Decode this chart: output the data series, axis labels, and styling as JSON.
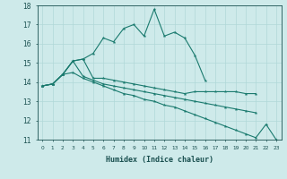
{
  "xlabel": "Humidex (Indice chaleur)",
  "x": [
    0,
    1,
    2,
    3,
    4,
    5,
    6,
    7,
    8,
    9,
    10,
    11,
    12,
    13,
    14,
    15,
    16,
    17,
    18,
    19,
    20,
    21,
    22,
    23
  ],
  "line1": [
    13.8,
    13.9,
    14.4,
    15.1,
    15.2,
    15.5,
    16.3,
    16.1,
    16.8,
    17.0,
    16.4,
    17.8,
    16.4,
    16.6,
    16.3,
    15.4,
    14.1,
    null,
    null,
    null,
    null,
    null,
    null,
    null
  ],
  "line2": [
    13.8,
    13.9,
    14.4,
    15.1,
    15.2,
    14.2,
    14.2,
    14.1,
    14.0,
    13.9,
    13.8,
    13.7,
    13.6,
    13.5,
    13.4,
    13.5,
    13.5,
    13.5,
    13.5,
    13.5,
    13.4,
    13.4,
    null,
    null
  ],
  "line3": [
    13.8,
    13.9,
    14.4,
    15.1,
    14.3,
    14.1,
    13.9,
    13.8,
    13.7,
    13.6,
    13.5,
    13.4,
    13.3,
    13.2,
    13.1,
    13.0,
    12.9,
    12.8,
    12.7,
    12.6,
    12.5,
    12.4,
    null,
    null
  ],
  "line4": [
    13.8,
    13.9,
    14.4,
    14.5,
    14.2,
    14.0,
    13.8,
    13.6,
    13.4,
    13.3,
    13.1,
    13.0,
    12.8,
    12.7,
    12.5,
    12.3,
    12.1,
    11.9,
    11.7,
    11.5,
    11.3,
    11.1,
    11.8,
    11.0
  ],
  "line_color": "#1a7a6e",
  "bg_color": "#ceeaea",
  "grid_color": "#b0d8d8",
  "ylim": [
    11,
    18
  ],
  "yticks": [
    11,
    12,
    13,
    14,
    15,
    16,
    17,
    18
  ]
}
